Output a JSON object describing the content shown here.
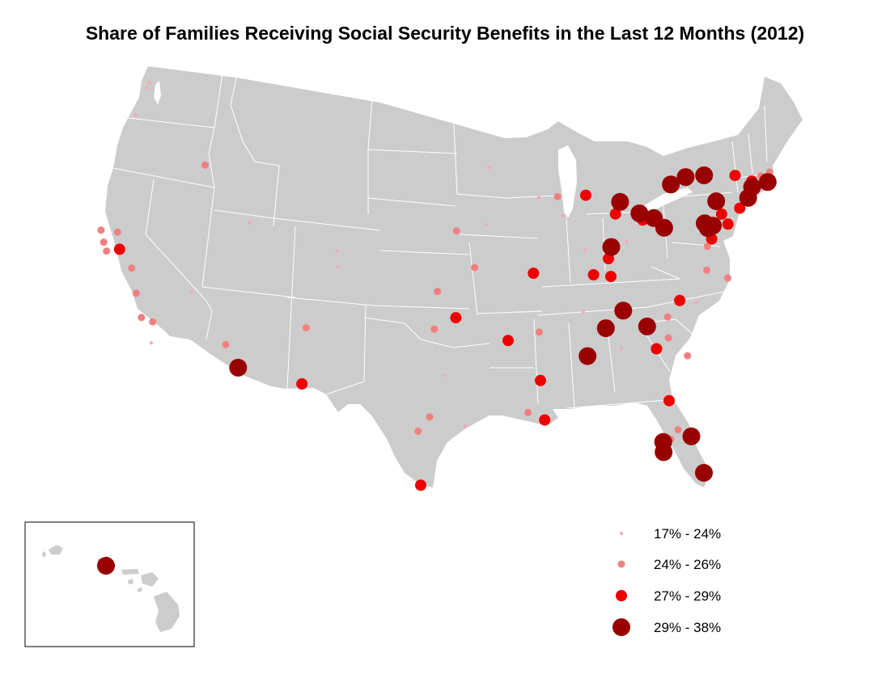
{
  "title": "Share of Families Receiving Social Security Benefits in the Last 12 Months (2012)",
  "colors": {
    "land": "#cccccc",
    "border": "#ffffff",
    "background": "#ffffff",
    "class_colors": [
      "#f4a7b4",
      "#f08080",
      "#ee0000",
      "#990000"
    ]
  },
  "legend": {
    "items": [
      {
        "label": "17% - 24%",
        "class": 0
      },
      {
        "label": "24% - 26%",
        "class": 1
      },
      {
        "label": "27% - 29%",
        "class": 2
      },
      {
        "label": "29% - 38%",
        "class": 3
      }
    ]
  },
  "chart_data": {
    "type": "proportional-symbol-map",
    "title": "Share of Families Receiving Social Security Benefits in the Last 12 Months (2012)",
    "value_unit": "percent of families",
    "classes": [
      {
        "label": "17% - 24%",
        "min": 17,
        "max": 24
      },
      {
        "label": "24% - 26%",
        "min": 24,
        "max": 26
      },
      {
        "label": "27% - 29%",
        "min": 27,
        "max": 29
      },
      {
        "label": "29% - 38%",
        "min": 29,
        "max": 38
      }
    ],
    "cities": [
      {
        "name": "Seattle",
        "lon": -122.33,
        "lat": 47.61,
        "class": 0
      },
      {
        "name": "Tacoma",
        "lon": -122.44,
        "lat": 47.25,
        "class": 0
      },
      {
        "name": "Portland",
        "lon": -122.68,
        "lat": 45.52,
        "class": 0
      },
      {
        "name": "Boise",
        "lon": -116.2,
        "lat": 43.62,
        "class": 1
      },
      {
        "name": "Salt Lake City",
        "lon": -111.89,
        "lat": 40.76,
        "class": 0
      },
      {
        "name": "Las Vegas",
        "lon": -115.14,
        "lat": 36.17,
        "class": 0
      },
      {
        "name": "Sacramento",
        "lon": -121.49,
        "lat": 38.58,
        "class": 1
      },
      {
        "name": "San Francisco",
        "lon": -122.42,
        "lat": 37.77,
        "class": 0
      },
      {
        "name": "Oakland",
        "lon": -122.27,
        "lat": 37.8,
        "class": 1
      },
      {
        "name": "San Jose",
        "lon": -121.89,
        "lat": 37.34,
        "class": 1
      },
      {
        "name": "Santa Rosa",
        "lon": -122.71,
        "lat": 38.44,
        "class": 1
      },
      {
        "name": "Stockton / Modesto",
        "lon": -121.0,
        "lat": 37.64,
        "class": 2
      },
      {
        "name": "Fresno",
        "lon": -119.79,
        "lat": 36.74,
        "class": 1
      },
      {
        "name": "Bakersfield",
        "lon": -119.02,
        "lat": 35.37,
        "class": 1
      },
      {
        "name": "Los Angeles",
        "lon": -118.24,
        "lat": 34.05,
        "class": 1
      },
      {
        "name": "Riverside",
        "lon": -117.4,
        "lat": 33.95,
        "class": 1
      },
      {
        "name": "San Diego",
        "lon": -117.16,
        "lat": 32.72,
        "class": 0
      },
      {
        "name": "Phoenix",
        "lon": -112.07,
        "lat": 33.45,
        "class": 1
      },
      {
        "name": "Tucson",
        "lon": -110.97,
        "lat": 32.22,
        "class": 3
      },
      {
        "name": "Albuquerque",
        "lon": -106.65,
        "lat": 35.08,
        "class": 1
      },
      {
        "name": "El Paso",
        "lon": -106.49,
        "lat": 31.76,
        "class": 2
      },
      {
        "name": "Denver",
        "lon": -104.99,
        "lat": 39.74,
        "class": 0
      },
      {
        "name": "Colorado Springs",
        "lon": -104.82,
        "lat": 38.83,
        "class": 0
      },
      {
        "name": "Omaha",
        "lon": -95.94,
        "lat": 41.26,
        "class": 1
      },
      {
        "name": "Des Moines",
        "lon": -93.61,
        "lat": 41.59,
        "class": 0
      },
      {
        "name": "Minneapolis",
        "lon": -93.27,
        "lat": 44.98,
        "class": 0
      },
      {
        "name": "Madison",
        "lon": -89.4,
        "lat": 43.07,
        "class": 0
      },
      {
        "name": "Milwaukee",
        "lon": -87.91,
        "lat": 43.04,
        "class": 1
      },
      {
        "name": "Chicago",
        "lon": -87.63,
        "lat": 41.88,
        "class": 0
      },
      {
        "name": "Kansas City",
        "lon": -94.58,
        "lat": 39.1,
        "class": 1
      },
      {
        "name": "Wichita",
        "lon": -97.34,
        "lat": 37.69,
        "class": 1
      },
      {
        "name": "St. Louis",
        "lon": -90.2,
        "lat": 38.63,
        "class": 2
      },
      {
        "name": "Oklahoma City",
        "lon": -97.52,
        "lat": 35.47,
        "class": 1
      },
      {
        "name": "Tulsa",
        "lon": -95.99,
        "lat": 36.15,
        "class": 2
      },
      {
        "name": "Dallas",
        "lon": -96.8,
        "lat": 32.78,
        "class": 0
      },
      {
        "name": "Austin",
        "lon": -97.74,
        "lat": 30.27,
        "class": 1
      },
      {
        "name": "San Antonio",
        "lon": -98.49,
        "lat": 29.42,
        "class": 1
      },
      {
        "name": "Houston",
        "lon": -95.37,
        "lat": 29.76,
        "class": 0
      },
      {
        "name": "McAllen",
        "lon": -98.23,
        "lat": 26.2,
        "class": 2
      },
      {
        "name": "Little Rock",
        "lon": -92.29,
        "lat": 34.75,
        "class": 2
      },
      {
        "name": "Memphis",
        "lon": -90.05,
        "lat": 35.15,
        "class": 1
      },
      {
        "name": "Jackson",
        "lon": -90.18,
        "lat": 32.3,
        "class": 2
      },
      {
        "name": "Baton Rouge",
        "lon": -91.15,
        "lat": 30.45,
        "class": 1
      },
      {
        "name": "New Orleans",
        "lon": -90.07,
        "lat": 29.95,
        "class": 2
      },
      {
        "name": "Nashville",
        "lon": -86.78,
        "lat": 36.16,
        "class": 0
      },
      {
        "name": "Knoxville",
        "lon": -83.92,
        "lat": 35.96,
        "class": 3
      },
      {
        "name": "Chattanooga",
        "lon": -85.31,
        "lat": 35.05,
        "class": 3
      },
      {
        "name": "Birmingham",
        "lon": -86.8,
        "lat": 33.52,
        "class": 3
      },
      {
        "name": "Atlanta",
        "lon": -84.39,
        "lat": 33.75,
        "class": 0
      },
      {
        "name": "Greenville",
        "lon": -82.39,
        "lat": 34.85,
        "class": 3
      },
      {
        "name": "Augusta",
        "lon": -81.97,
        "lat": 33.47,
        "class": 2
      },
      {
        "name": "Columbia",
        "lon": -81.03,
        "lat": 34.0,
        "class": 1
      },
      {
        "name": "Charleston",
        "lon": -79.93,
        "lat": 32.78,
        "class": 1
      },
      {
        "name": "Charlotte",
        "lon": -80.84,
        "lat": 35.23,
        "class": 1
      },
      {
        "name": "Greensboro",
        "lon": -79.79,
        "lat": 36.07,
        "class": 2
      },
      {
        "name": "Raleigh",
        "lon": -78.64,
        "lat": 35.78,
        "class": 0
      },
      {
        "name": "Richmond",
        "lon": -77.44,
        "lat": 37.54,
        "class": 1
      },
      {
        "name": "Virginia Beach",
        "lon": -76.06,
        "lat": 36.85,
        "class": 1
      },
      {
        "name": "Louisville",
        "lon": -85.76,
        "lat": 38.25,
        "class": 2
      },
      {
        "name": "Lexington",
        "lon": -84.5,
        "lat": 38.04,
        "class": 2
      },
      {
        "name": "Indianapolis",
        "lon": -86.16,
        "lat": 39.77,
        "class": 0
      },
      {
        "name": "Cincinnati",
        "lon": -84.51,
        "lat": 39.1,
        "class": 2
      },
      {
        "name": "Dayton",
        "lon": -84.19,
        "lat": 39.76,
        "class": 3
      },
      {
        "name": "Columbus",
        "lon": -83.0,
        "lat": 39.96,
        "class": 0
      },
      {
        "name": "Toledo",
        "lon": -83.54,
        "lat": 41.66,
        "class": 2
      },
      {
        "name": "Detroit",
        "lon": -83.05,
        "lat": 42.33,
        "class": 3
      },
      {
        "name": "Grand Rapids",
        "lon": -85.67,
        "lat": 42.96,
        "class": 2
      },
      {
        "name": "Cleveland",
        "lon": -81.69,
        "lat": 41.5,
        "class": 3
      },
      {
        "name": "Akron",
        "lon": -81.52,
        "lat": 41.08,
        "class": 2
      },
      {
        "name": "Youngstown",
        "lon": -80.65,
        "lat": 41.1,
        "class": 3
      },
      {
        "name": "Pittsburgh",
        "lon": -79.99,
        "lat": 40.44,
        "class": 3
      },
      {
        "name": "Buffalo",
        "lon": -78.88,
        "lat": 42.89,
        "class": 3
      },
      {
        "name": "Rochester",
        "lon": -77.61,
        "lat": 43.16,
        "class": 3
      },
      {
        "name": "Syracuse",
        "lon": -76.15,
        "lat": 43.05,
        "class": 3
      },
      {
        "name": "Albany",
        "lon": -73.76,
        "lat": 42.65,
        "class": 2
      },
      {
        "name": "Scranton",
        "lon": -75.66,
        "lat": 41.41,
        "class": 3
      },
      {
        "name": "Harrisburg",
        "lon": -76.88,
        "lat": 40.27,
        "class": 3
      },
      {
        "name": "Lancaster",
        "lon": -76.31,
        "lat": 40.04,
        "class": 3
      },
      {
        "name": "Allentown",
        "lon": -75.47,
        "lat": 40.6,
        "class": 2
      },
      {
        "name": "Philadelphia",
        "lon": -75.17,
        "lat": 39.95,
        "class": 2
      },
      {
        "name": "York",
        "lon": -76.73,
        "lat": 39.96,
        "class": 3
      },
      {
        "name": "Baltimore",
        "lon": -76.61,
        "lat": 39.29,
        "class": 2
      },
      {
        "name": "Washington",
        "lon": -77.04,
        "lat": 38.91,
        "class": 1
      },
      {
        "name": "New York",
        "lon": -74.01,
        "lat": 40.71,
        "class": 2
      },
      {
        "name": "Bridgeport",
        "lon": -73.19,
        "lat": 41.19,
        "class": 3
      },
      {
        "name": "Hartford",
        "lon": -72.68,
        "lat": 41.76,
        "class": 3
      },
      {
        "name": "Springfield",
        "lon": -72.59,
        "lat": 42.1,
        "class": 2
      },
      {
        "name": "Worcester",
        "lon": -71.8,
        "lat": 42.26,
        "class": 1
      },
      {
        "name": "Providence",
        "lon": -71.41,
        "lat": 41.82,
        "class": 3
      },
      {
        "name": "Boston",
        "lon": -71.06,
        "lat": 42.36,
        "class": 1
      },
      {
        "name": "Jacksonville",
        "lon": -81.66,
        "lat": 30.33,
        "class": 2
      },
      {
        "name": "Orlando",
        "lon": -81.38,
        "lat": 28.54,
        "class": 1
      },
      {
        "name": "Tampa",
        "lon": -82.46,
        "lat": 27.95,
        "class": 3
      },
      {
        "name": "Sarasota",
        "lon": -82.53,
        "lat": 27.34,
        "class": 3
      },
      {
        "name": "Lakeland",
        "lon": -81.95,
        "lat": 28.04,
        "class": 1
      },
      {
        "name": "Palm Bay",
        "lon": -80.59,
        "lat": 28.03,
        "class": 3
      },
      {
        "name": "Miami",
        "lon": -80.19,
        "lat": 25.76,
        "class": 3
      },
      {
        "name": "Honolulu",
        "lon": -157.86,
        "lat": 21.31,
        "class": 3,
        "inset": "hawaii"
      }
    ]
  }
}
